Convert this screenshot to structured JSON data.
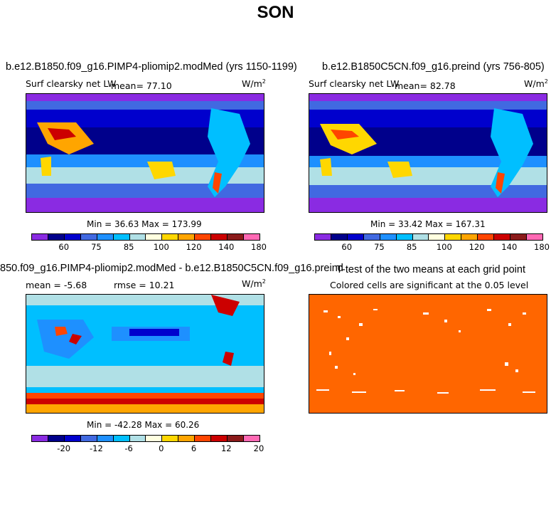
{
  "page": {
    "title": "SON"
  },
  "panels": {
    "a": {
      "title": "b.e12.B1850.f09_g16.PIMP4-pliomip2.modMed (yrs 1150-1199)",
      "subtitle": "Surf clearsky net LW",
      "mean": "mean=  77.10",
      "units": "W/m",
      "units_exp": "2",
      "minmax": "Min =  36.63 Max = 173.99"
    },
    "b": {
      "title": "b.e12.B1850C5CN.f09_g16.preind (yrs 756-805)",
      "subtitle": "Surf clearsky net LW",
      "mean": "mean=  82.78",
      "units": "W/m",
      "units_exp": "2",
      "minmax": "Min =  33.42 Max = 167.31"
    },
    "c": {
      "title": "850.f09_g16.PIMP4-pliomip2.modMed - b.e12.B1850C5CN.f09_g16.preind",
      "mean": "mean =  -5.68",
      "rmse": "rmse =  10.21",
      "units": "W/m",
      "units_exp": "2",
      "minmax": "Min = -42.28 Max =  60.26"
    },
    "d": {
      "title": "T-test of the two means at each grid point",
      "subtitle": "Colored cells are significant at the 0.05 level"
    }
  },
  "colorbars": {
    "abs_ticks": [
      "60",
      "75",
      "85",
      "100",
      "120",
      "140",
      "180"
    ],
    "diff_ticks": [
      "-20",
      "-12",
      "-6",
      "0",
      "6",
      "12",
      "20"
    ],
    "colors": [
      "#8a2be2",
      "#00008b",
      "#0000cd",
      "#4169e1",
      "#1e90ff",
      "#00bfff",
      "#b0e0e6",
      "#ffffe0",
      "#ffd700",
      "#ffa500",
      "#ff4500",
      "#cc0000",
      "#8b1a1a",
      "#ff69b4"
    ]
  },
  "ttest": {
    "fill_color": "#ff6600"
  }
}
